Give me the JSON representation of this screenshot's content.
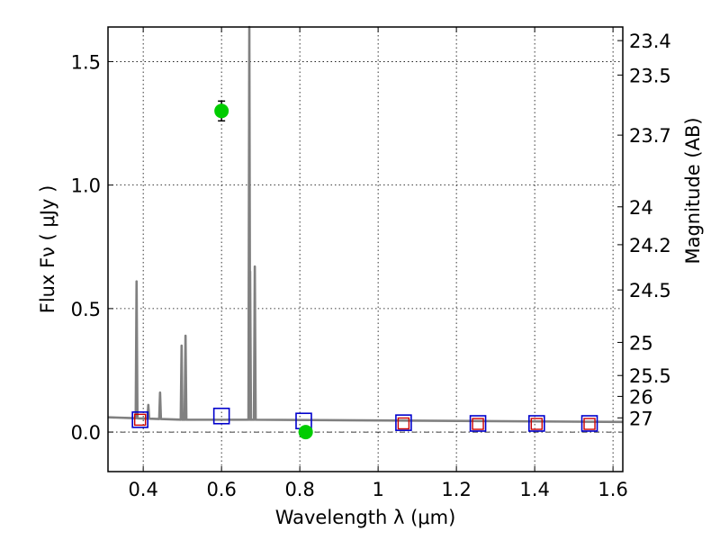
{
  "chart_data": {
    "type": "line",
    "title": "",
    "xlabel": "Wavelength  λ (μm)",
    "ylabel": "Flux  Fν  ( μJy )",
    "y2label": "Magnitude (AB)",
    "xlim": [
      0.31,
      1.625
    ],
    "ylim": [
      -0.16,
      1.64
    ],
    "grid": true,
    "x_ticks": [
      0.4,
      0.6,
      0.8,
      1.0,
      1.2,
      1.4,
      1.6
    ],
    "x_tick_labels": [
      "0.4",
      "0.6",
      "0.8",
      "1",
      "1.2",
      "1.4",
      "1.6"
    ],
    "y_ticks": [
      0.0,
      0.5,
      1.0,
      1.5
    ],
    "y_tick_labels": [
      "0.0",
      "0.5",
      "1.0",
      "1.5"
    ],
    "magnitude_ticks": [
      "23.4",
      "23.5",
      "23.7",
      "24",
      "24.2",
      "24.5",
      "25",
      "25.5",
      "26",
      "27"
    ],
    "spectrum": {
      "name": "model spectrum",
      "color": "#808080",
      "continuum": [
        [
          0.31,
          0.06
        ],
        [
          0.4,
          0.055
        ],
        [
          0.5,
          0.05
        ],
        [
          0.6,
          0.05
        ],
        [
          0.8,
          0.05
        ],
        [
          1.0,
          0.046
        ],
        [
          1.2,
          0.044
        ],
        [
          1.4,
          0.042
        ],
        [
          1.625,
          0.041
        ]
      ],
      "emission_lines": [
        {
          "x": 0.383,
          "peak": 0.61
        },
        {
          "x": 0.413,
          "peak": 0.11
        },
        {
          "x": 0.443,
          "peak": 0.16
        },
        {
          "x": 0.498,
          "peak": 0.35
        },
        {
          "x": 0.508,
          "peak": 0.39
        },
        {
          "x": 0.671,
          "peak": 1.64
        },
        {
          "x": 0.673,
          "peak": 0.65
        },
        {
          "x": 0.685,
          "peak": 0.67
        }
      ]
    },
    "model_photometry": {
      "name": "model photometry (blue squares)",
      "color": "#0000cc",
      "points": [
        [
          0.392,
          0.05
        ],
        [
          0.6,
          0.065
        ],
        [
          0.81,
          0.045
        ],
        [
          1.065,
          0.038
        ],
        [
          1.255,
          0.035
        ],
        [
          1.405,
          0.035
        ],
        [
          1.54,
          0.035
        ]
      ]
    },
    "upper_limits": {
      "name": "red squares",
      "color": "#cc0000",
      "points": [
        [
          0.392,
          0.05
        ],
        [
          1.065,
          0.035
        ],
        [
          1.255,
          0.033
        ],
        [
          1.405,
          0.033
        ],
        [
          1.54,
          0.033
        ]
      ]
    },
    "observed": {
      "name": "observed photometry (green circles)",
      "color": "#00cc00",
      "points": [
        {
          "x": 0.6,
          "y": 1.3,
          "err": 0.04
        },
        {
          "x": 0.815,
          "y": 0.0,
          "err": 0.012
        }
      ]
    }
  }
}
